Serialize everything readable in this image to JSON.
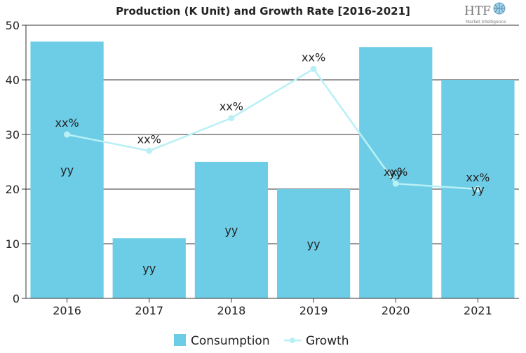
{
  "chart_data": {
    "type": "bar",
    "title": "Production (K Unit) and Growth Rate [2016-2021]",
    "categories": [
      "2016",
      "2017",
      "2018",
      "2019",
      "2020",
      "2021"
    ],
    "series": [
      {
        "name": "Consumption",
        "values": [
          47,
          11,
          25,
          20,
          46,
          40
        ],
        "labels": [
          "yy",
          "yy",
          "yy",
          "yy",
          "yy",
          "yy"
        ]
      },
      {
        "name": "Growth",
        "type": "line",
        "values": [
          30,
          27,
          33,
          42,
          21,
          20
        ],
        "labels": [
          "xx%",
          "xx%",
          "xx%",
          "xx%",
          "xx%",
          "xx%"
        ]
      }
    ],
    "ylim": [
      0,
      50
    ],
    "yticks": [
      "0",
      "10",
      "20",
      "30",
      "40",
      "50"
    ],
    "xlabel": "",
    "ylabel": "",
    "grid": true,
    "legend": "bottom"
  },
  "colors": {
    "bar": "#6ecde6",
    "line": "#b8f0f5",
    "axis": "#333333",
    "grid": "#333333",
    "text": "#222222"
  },
  "logo": {
    "text": "HTF",
    "subtitle": "Market Intelligence"
  }
}
